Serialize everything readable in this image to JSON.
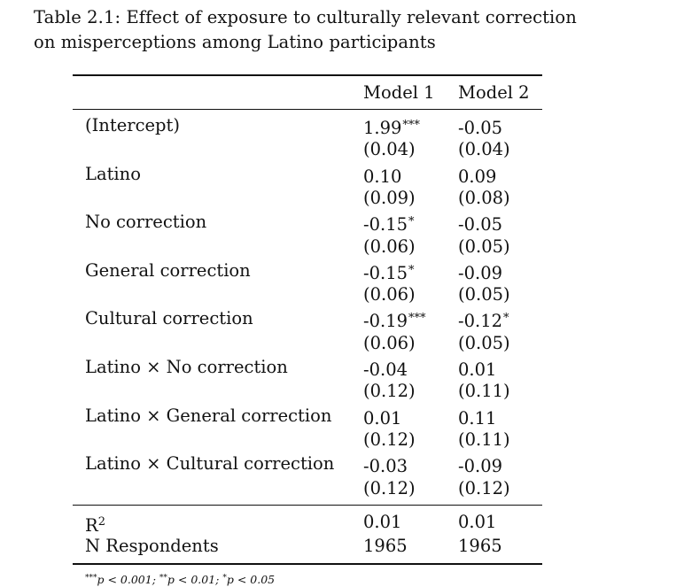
{
  "caption": {
    "line1": "Table 2.1: Effect of exposure to culturally relevant correction",
    "line2": "on misperceptions among Latino participants"
  },
  "headers": {
    "model1": "Model 1",
    "model2": "Model 2"
  },
  "rows": [
    {
      "label": "(Intercept)",
      "m1": "1.99",
      "m1_stars": "***",
      "m2": "-0.05",
      "m2_stars": "",
      "m1_se": "(0.04)",
      "m2_se": "(0.04)"
    },
    {
      "label": "Latino",
      "m1": "0.10",
      "m1_stars": "",
      "m2": "0.09",
      "m2_stars": "",
      "m1_se": "(0.09)",
      "m2_se": "(0.08)"
    },
    {
      "label": "No correction",
      "m1": "-0.15",
      "m1_stars": "*",
      "m2": "-0.05",
      "m2_stars": "",
      "m1_se": "(0.06)",
      "m2_se": "(0.05)"
    },
    {
      "label": "General correction",
      "m1": "-0.15",
      "m1_stars": "*",
      "m2": "-0.09",
      "m2_stars": "",
      "m1_se": "(0.06)",
      "m2_se": "(0.05)"
    },
    {
      "label": "Cultural correction",
      "m1": "-0.19",
      "m1_stars": "***",
      "m2": "-0.12",
      "m2_stars": "*",
      "m1_se": "(0.06)",
      "m2_se": "(0.05)"
    },
    {
      "label": "Latino × No correction",
      "m1": "-0.04",
      "m1_stars": "",
      "m2": "0.01",
      "m2_stars": "",
      "m1_se": "(0.12)",
      "m2_se": "(0.11)"
    },
    {
      "label": "Latino × General correction",
      "m1": "0.01",
      "m1_stars": "",
      "m2": "0.11",
      "m2_stars": "",
      "m1_se": "(0.12)",
      "m2_se": "(0.11)"
    },
    {
      "label": "Latino × Cultural correction",
      "m1": "-0.03",
      "m1_stars": "",
      "m2": "-0.09",
      "m2_stars": "",
      "m1_se": "(0.12)",
      "m2_se": "(0.12)"
    }
  ],
  "stats": [
    {
      "label_base": "R",
      "label_sup": "2",
      "m1": "0.01",
      "m2": "0.01"
    },
    {
      "label_base": "N Respondents",
      "label_sup": "",
      "m1": "1965",
      "m2": "1965"
    }
  ],
  "footnote": {
    "s3": "***",
    "t1": "p < 0.001; ",
    "s2": "**",
    "t2": "p < 0.01; ",
    "s1": "*",
    "t3": "p < 0.05"
  }
}
